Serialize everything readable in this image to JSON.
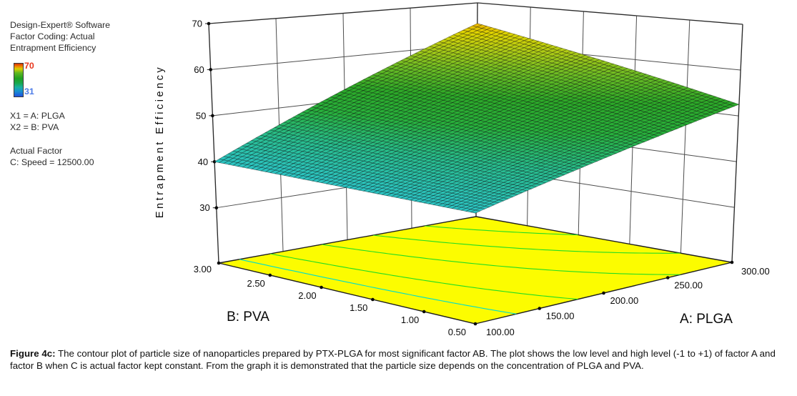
{
  "info_panel": {
    "line1": "Design-Expert® Software",
    "line2": "Factor Coding: Actual",
    "line3": "Entrapment Efficiency",
    "gradient": {
      "max_label": "70",
      "min_label": "31",
      "max_label_color": "#e8381e",
      "min_label_color": "#4d7ce8"
    },
    "x1_line": "X1 = A: PLGA",
    "x2_line": "X2 = B: PVA",
    "actual_factor_title": "Actual Factor",
    "actual_factor_value": "C: Speed = 12500.00"
  },
  "caption": {
    "label": "Figure 4c:",
    "text": " The contour plot of particle size of nanoparticles prepared by PTX-PLGA for most significant factor AB. The plot shows the low level and high level (-1 to +1) of factor A and factor B when C is actual factor kept constant. From the graph it is demonstrated that the particle size depends on the concentration of PLGA and PVA."
  },
  "chart_data": {
    "type": "surface3d",
    "response": {
      "name": "Entrapment Efficiency",
      "data_min": 31,
      "data_max": 70
    },
    "x_axis": {
      "label": "A: PLGA",
      "range": [
        100,
        300
      ],
      "ticks": [
        {
          "v": 100,
          "label": "100.00"
        },
        {
          "v": 150,
          "label": "150.00"
        },
        {
          "v": 200,
          "label": "200.00"
        },
        {
          "v": 250,
          "label": "250.00"
        },
        {
          "v": 300,
          "label": "300.00"
        }
      ]
    },
    "y_axis": {
      "label": "B: PVA",
      "range": [
        0.5,
        3
      ],
      "ticks": [
        {
          "v": 0.5,
          "label": "0.50"
        },
        {
          "v": 1.0,
          "label": "1.00"
        },
        {
          "v": 1.5,
          "label": "1.50"
        },
        {
          "v": 2.0,
          "label": "2.00"
        },
        {
          "v": 2.5,
          "label": "2.50"
        },
        {
          "v": 3.0,
          "label": "3.00"
        }
      ]
    },
    "z_axis": {
      "label": "Entrapment Efficiency",
      "ticks": [
        {
          "v": 30,
          "label": "30"
        },
        {
          "v": 40,
          "label": "40"
        },
        {
          "v": 50,
          "label": "50"
        },
        {
          "v": 60,
          "label": "60"
        },
        {
          "v": 70,
          "label": "70"
        }
      ]
    },
    "fixed_factor": "C: Speed = 12500.00",
    "surface_corners": {
      "front_A100_B05": 40,
      "right_A300_B05": 52.5,
      "back_A300_B3": 65,
      "left_A100_B3": 40
    },
    "color_range": [
      31,
      70
    ],
    "colormap_stops": [
      [
        0,
        "#1850f0"
      ],
      [
        0.12,
        "#18a0e0"
      ],
      [
        0.23,
        "#2cc4c4"
      ],
      [
        0.35,
        "#28bc8c"
      ],
      [
        0.46,
        "#28b03c"
      ],
      [
        0.56,
        "#2ca828"
      ],
      [
        0.66,
        "#6cbc24"
      ],
      [
        0.76,
        "#b4cc14"
      ],
      [
        0.83,
        "#e0d400"
      ],
      [
        0.89,
        "#f0a000"
      ],
      [
        1,
        "#e84000"
      ]
    ],
    "floor_color": "#fcfc00",
    "floor_contours": [
      {
        "level": 42,
        "color": "#00ddcc"
      },
      {
        "level": 45,
        "color": "#22dd22"
      },
      {
        "level": 50,
        "color": "#22dd22"
      },
      {
        "level": 55,
        "color": "#22dd22"
      },
      {
        "level": 60,
        "color": "#22dd22"
      }
    ]
  }
}
